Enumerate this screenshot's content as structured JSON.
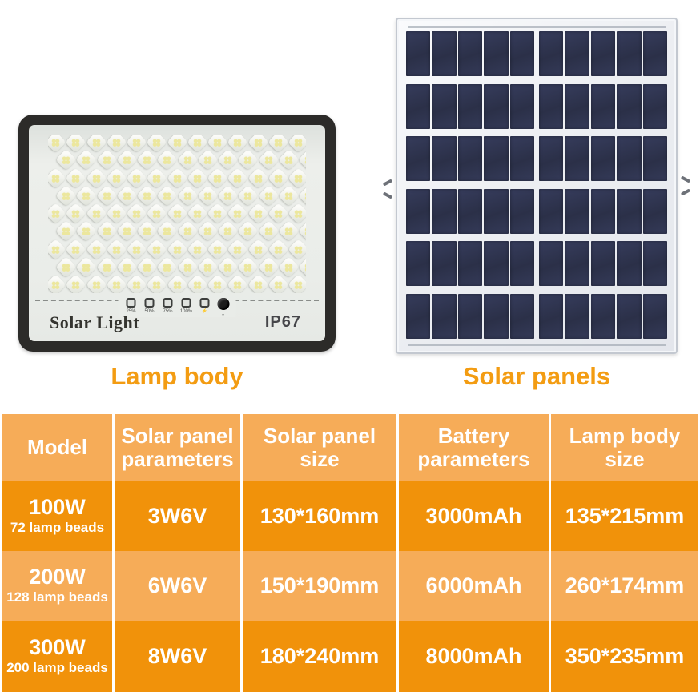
{
  "figures": {
    "lamp": {
      "caption": "Lamp body",
      "brand": "Solar Light",
      "rating": "IP67",
      "led_rows": 9,
      "led_cols": 13,
      "indicator_labels": [
        "25%",
        "50%",
        "75%",
        "100%",
        "⚡"
      ]
    },
    "panel": {
      "caption": "Solar panels",
      "cell_rows": 6,
      "cell_cols": 10
    }
  },
  "table": {
    "headers": [
      "Model",
      "Solar panel\nparameters",
      "Solar panel\nsize",
      "Battery\nparameters",
      "Lamp body\nsize"
    ],
    "rows": [
      {
        "model": "100W",
        "model_sub": "72 lamp beads",
        "cells": [
          "3W6V",
          "130*160mm",
          "3000mAh",
          "135*215mm"
        ]
      },
      {
        "model": "200W",
        "model_sub": "128 lamp beads",
        "cells": [
          "6W6V",
          "150*190mm",
          "6000mAh",
          "260*174mm"
        ]
      },
      {
        "model": "300W",
        "model_sub": "200 lamp beads",
        "cells": [
          "8W6V",
          "180*240mm",
          "8000mAh",
          "350*235mm"
        ]
      }
    ]
  },
  "colors": {
    "row_light": "#F6AC58",
    "row_dark": "#F1920A",
    "caption_accent": "#F39C12",
    "separator": "#FFFFFF",
    "panel_cell": "#2F3450",
    "lamp_frame": "#2C2B29",
    "lamp_face": "#E9ECE8"
  }
}
